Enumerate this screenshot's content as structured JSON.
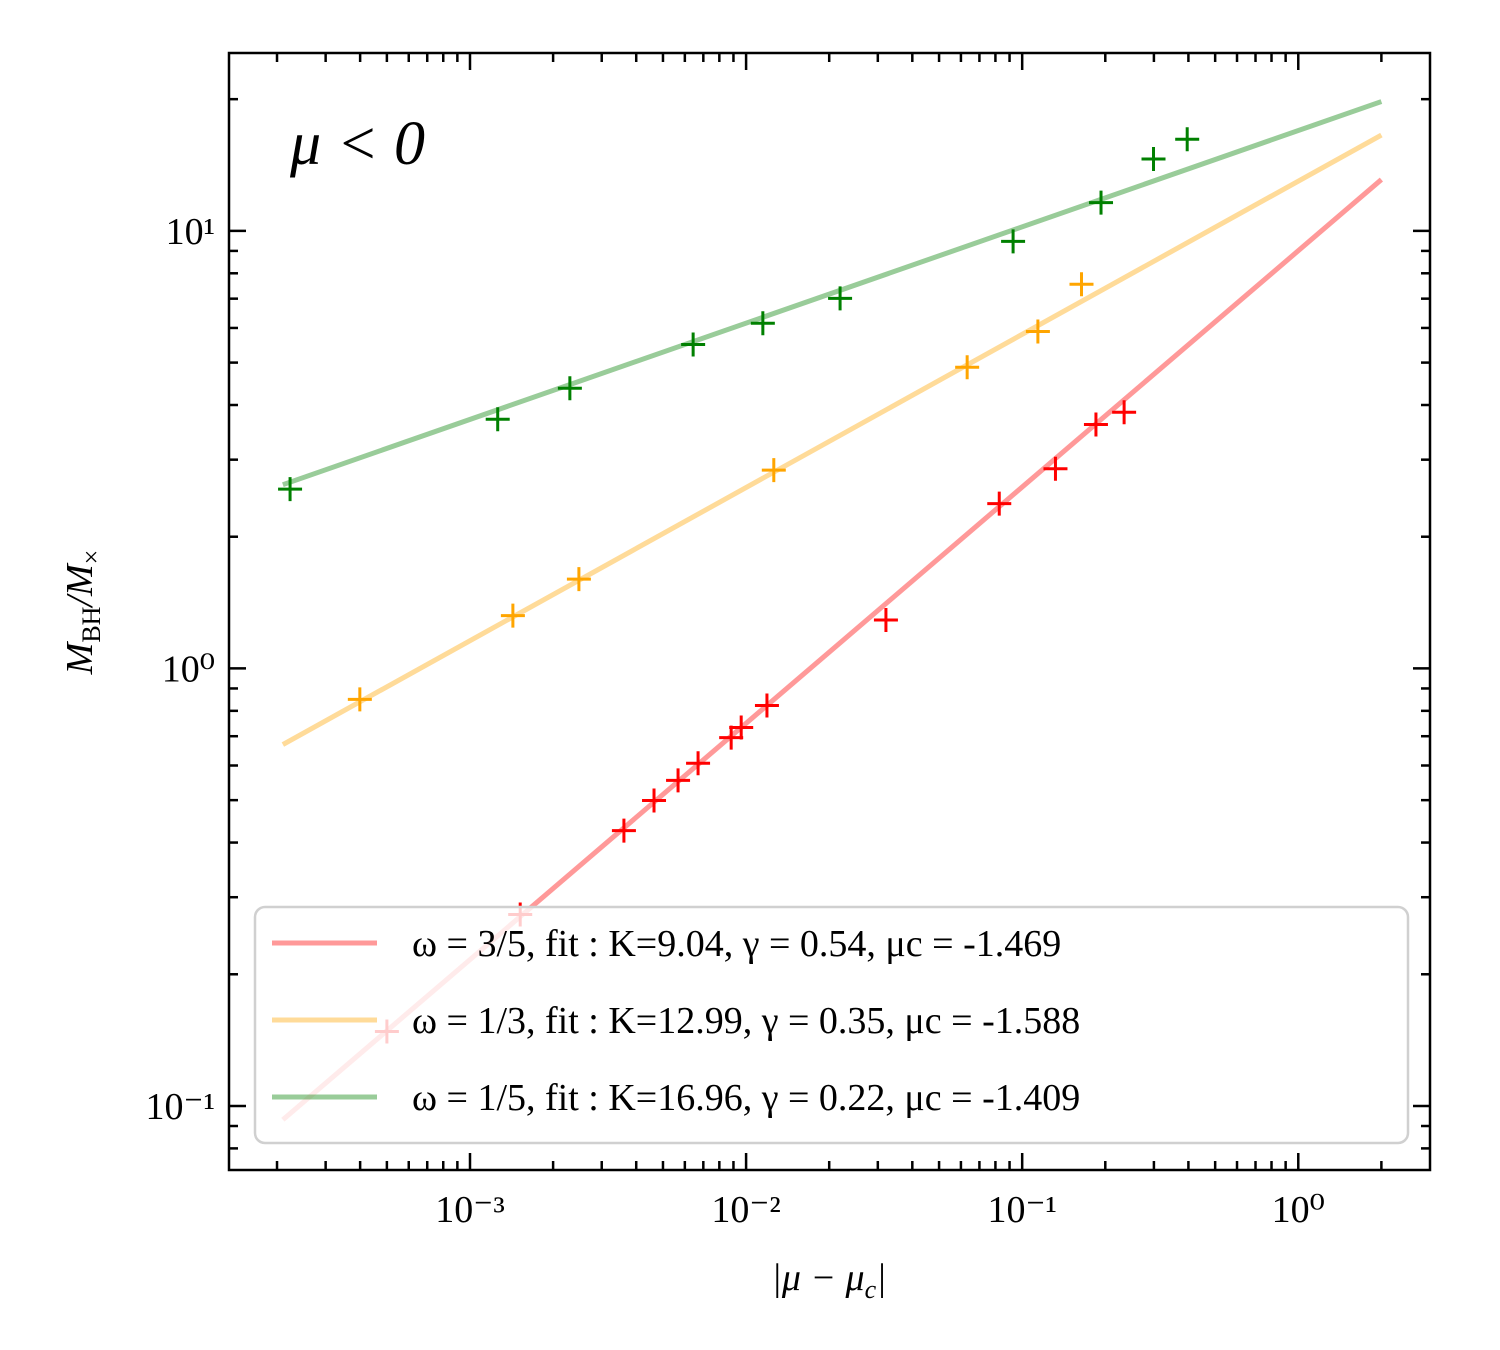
{
  "chart_data": {
    "type": "scatter",
    "annotation": "μ < 0",
    "xlabel": [
      "|μ − μ",
      "c",
      "|"
    ],
    "ylabel": [
      "M",
      "BH",
      "/M",
      "×"
    ],
    "xscale": "log",
    "yscale": "log",
    "xlim": [
      0.000134,
      3.0
    ],
    "ylim": [
      0.0714,
      25.5
    ],
    "xticks": [
      {
        "value": 0.001,
        "label": "10⁻³"
      },
      {
        "value": 0.01,
        "label": "10⁻²"
      },
      {
        "value": 0.1,
        "label": "10⁻¹"
      },
      {
        "value": 1,
        "label": "10⁰"
      }
    ],
    "yticks": [
      {
        "value": 0.1,
        "label": "10⁻¹"
      },
      {
        "value": 1,
        "label": "10⁰"
      },
      {
        "value": 10,
        "label": "10¹"
      }
    ],
    "xminorticks": [
      0.0002,
      0.0003,
      0.0004,
      0.0005,
      0.0006,
      0.0007,
      0.0008,
      0.0009,
      0.002,
      0.003,
      0.004,
      0.005,
      0.006,
      0.007,
      0.008,
      0.009,
      0.02,
      0.03,
      0.04,
      0.05,
      0.06,
      0.07,
      0.08,
      0.09,
      0.2,
      0.3,
      0.4,
      0.5,
      0.6,
      0.7,
      0.8,
      0.9,
      2
    ],
    "yminorticks": [
      0.08,
      0.09,
      0.2,
      0.3,
      0.4,
      0.5,
      0.6,
      0.7,
      0.8,
      0.9,
      2,
      3,
      4,
      5,
      6,
      7,
      8,
      9,
      20
    ],
    "legend": "lower right",
    "series": [
      {
        "name": "ω = 3/5, fit : K=9.04, γ = 0.54, μc = -1.469",
        "color": "red",
        "x": [
          0.00021,
          2
        ],
        "values": [
          0.093,
          13.1
        ]
      },
      {
        "name": "ω = 1/3, fit : K=12.99, γ = 0.35, μc = -1.588",
        "color": "orange",
        "x": [
          0.00021,
          2
        ],
        "values": [
          0.67,
          16.56
        ]
      },
      {
        "name": "ω = 1/5, fit : K=16.96, γ = 0.22, μc = -1.409",
        "color": "green",
        "x": [
          0.00021,
          2
        ],
        "values": [
          2.63,
          19.75
        ]
      }
    ],
    "points": [
      {
        "color": "red",
        "x": [
          0.0005,
          0.00152,
          0.00361,
          0.00464,
          0.00567,
          0.0067,
          0.00883,
          0.0096,
          0.0119,
          0.0321,
          0.0826,
          0.132,
          0.185,
          0.234
        ],
        "values": [
          0.148,
          0.274,
          0.426,
          0.499,
          0.555,
          0.607,
          0.695,
          0.733,
          0.823,
          1.29,
          2.38,
          2.86,
          3.61,
          3.85
        ]
      },
      {
        "color": "orange",
        "x": [
          0.000399,
          0.00143,
          0.00248,
          0.0126,
          0.0632,
          0.114,
          0.164
        ],
        "values": [
          0.85,
          1.32,
          1.6,
          2.84,
          4.88,
          5.89,
          7.55
        ]
      },
      {
        "color": "green",
        "x": [
          0.000223,
          0.00126,
          0.0023,
          0.00643,
          0.0115,
          0.0219,
          0.0927,
          0.193,
          0.299,
          0.396
        ],
        "values": [
          2.57,
          3.71,
          4.37,
          5.5,
          6.15,
          7.01,
          9.46,
          11.6,
          14.6,
          16.2
        ]
      }
    ]
  }
}
